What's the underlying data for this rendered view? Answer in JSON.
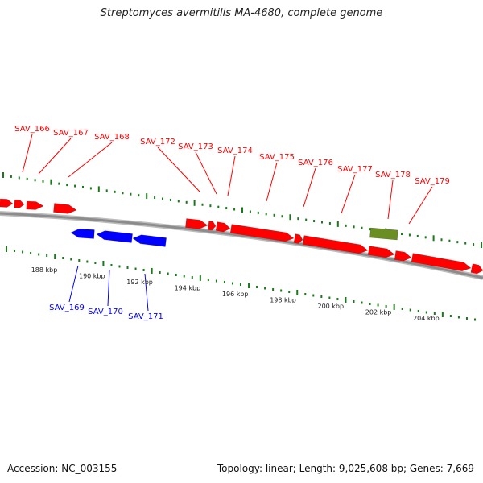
{
  "header": {
    "title": "Streptomyces avermitilis MA-4680, complete genome"
  },
  "footer": {
    "accession": "Accession: NC_003155",
    "summary": "Topology: linear; Length: 9,025,608 bp; Genes: 7,669"
  },
  "colors": {
    "forward_gene": "#ff0000",
    "reverse_gene": "#0000ff",
    "other_feature": "#6b8e23",
    "ticks": "#1a7a1a",
    "backbone": "#8c8c8c"
  },
  "scale_labels": [
    "188 kbp",
    "190 kbp",
    "192 kbp",
    "194 kbp",
    "196 kbp",
    "198 kbp",
    "200 kbp",
    "202 kbp",
    "204 kbp"
  ],
  "forward_labels": [
    "SAV_166",
    "SAV_167",
    "SAV_168",
    "SAV_172",
    "SAV_173",
    "SAV_174",
    "SAV_175",
    "SAV_176",
    "SAV_177",
    "SAV_178",
    "SAV_179"
  ],
  "reverse_labels": [
    "SAV_169",
    "SAV_170",
    "SAV_171"
  ]
}
